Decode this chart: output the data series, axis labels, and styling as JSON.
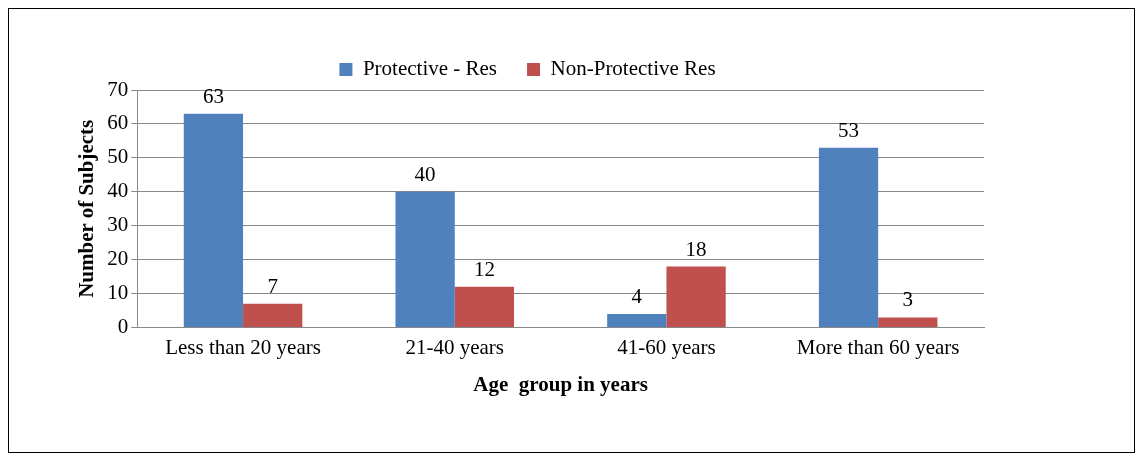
{
  "chart_data": {
    "type": "bar",
    "xlabel": "Age  group in years",
    "ylabel": "Number of Subjects",
    "categories": [
      "Less than 20 years",
      "21-40 years",
      "41-60 years",
      "More than 60 years"
    ],
    "series": [
      {
        "name": "Protective - Res",
        "color": "#4f81bd",
        "values": [
          63,
          40,
          4,
          53
        ]
      },
      {
        "name": "Non-Protective Res",
        "color": "#c0504d",
        "values": [
          7,
          12,
          18,
          3
        ]
      }
    ],
    "ylim": [
      0,
      70
    ],
    "yticks": [
      0,
      10,
      20,
      30,
      40,
      50,
      60,
      70
    ],
    "grid": "y",
    "legend": "top",
    "data_labels": true
  }
}
